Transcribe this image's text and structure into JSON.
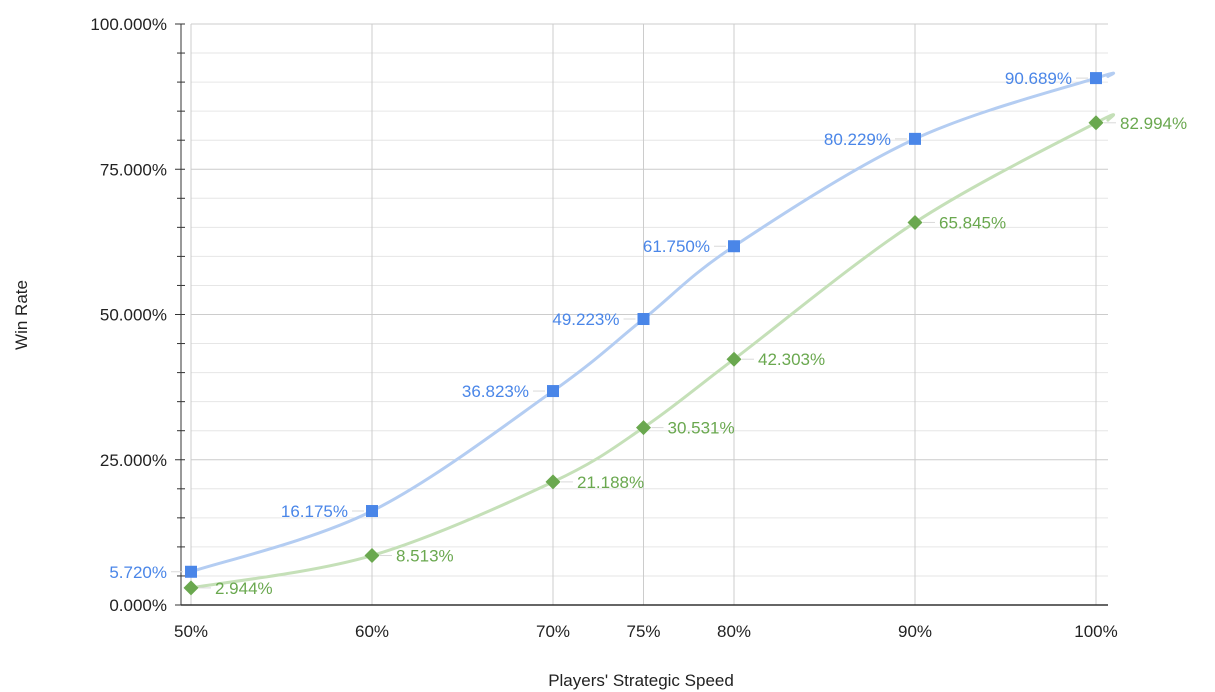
{
  "chart_data": {
    "type": "line",
    "title": "",
    "xlabel": "Players' Strategic Speed",
    "ylabel": "Win Rate",
    "x": [
      50,
      60,
      70,
      75,
      80,
      90,
      100
    ],
    "x_tick_labels": [
      "50%",
      "60%",
      "70%",
      "75%",
      "80%",
      "90%",
      "100%"
    ],
    "xlim": [
      50,
      100
    ],
    "ylim": [
      0,
      100
    ],
    "y_ticks": [
      0,
      25,
      50,
      75,
      100
    ],
    "y_tick_labels": [
      "0.000%",
      "25.000%",
      "50.000%",
      "75.000%",
      "100.000%"
    ],
    "grid": true,
    "smooth": true,
    "legend": "none",
    "series": [
      {
        "color": "#4a86e8",
        "line_color": "#b4cdf2",
        "marker": "square",
        "values": [
          5.72,
          16.175,
          36.823,
          49.223,
          61.75,
          80.229,
          90.689
        ],
        "labels": [
          "5.720%",
          "16.175%",
          "36.823%",
          "49.223%",
          "61.750%",
          "80.229%",
          "90.689%"
        ],
        "label_position": "left"
      },
      {
        "color": "#6aa84f",
        "line_color": "#c5e0b8",
        "marker": "diamond",
        "values": [
          2.944,
          8.513,
          21.188,
          30.531,
          42.303,
          65.845,
          82.994
        ],
        "labels": [
          "2.944%",
          "8.513%",
          "21.188%",
          "30.531%",
          "42.303%",
          "65.845%",
          "82.994%"
        ],
        "label_position": "right"
      }
    ]
  }
}
